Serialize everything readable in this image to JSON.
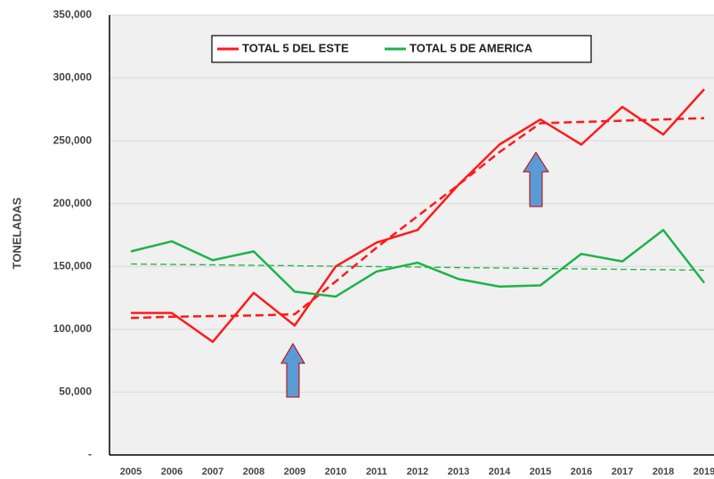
{
  "chart_data": {
    "type": "line",
    "y_label": "TONELADAS",
    "categories": [
      "2005",
      "2006",
      "2007",
      "2008",
      "2009",
      "2010",
      "2011",
      "2012",
      "2013",
      "2014",
      "2015",
      "2016",
      "2017",
      "2018",
      "2019"
    ],
    "series": [
      {
        "name": "TOTAL 5 DEL ESTE",
        "color": "#ff1a1a",
        "values": [
          113000,
          113000,
          90000,
          129000,
          103000,
          150000,
          169000,
          179000,
          215000,
          247000,
          267000,
          247000,
          277000,
          255000,
          291000
        ]
      },
      {
        "name": "TOTAL 5 DE AMERICA",
        "color": "#1db34a",
        "values": [
          162000,
          170000,
          155000,
          162000,
          130000,
          126000,
          146000,
          153000,
          140000,
          134000,
          135000,
          160000,
          154000,
          179000,
          137000
        ]
      }
    ],
    "trendlines": [
      {
        "color": "#ff1a1a",
        "values": [
          109000,
          110000,
          110500,
          111000,
          112000,
          138000,
          165000,
          190000,
          215000,
          241000,
          264000,
          265000,
          266000,
          267000,
          268000
        ]
      },
      {
        "color": "#1db34a",
        "values": [
          152000,
          151600,
          151300,
          150900,
          150600,
          150200,
          149900,
          149500,
          149100,
          148800,
          148400,
          148100,
          147700,
          147400,
          147000
        ]
      }
    ],
    "ylim": [
      0,
      350000
    ],
    "yticks": [
      {
        "value": 0,
        "label": "-"
      },
      {
        "value": 50000,
        "label": "50,000"
      },
      {
        "value": 100000,
        "label": "100,000"
      },
      {
        "value": 150000,
        "label": "150,000"
      },
      {
        "value": 200000,
        "label": "200,000"
      },
      {
        "value": 250000,
        "label": "250,000"
      },
      {
        "value": 300000,
        "label": "300,000"
      },
      {
        "value": 350000,
        "label": "350,000"
      }
    ],
    "grid": true
  }
}
